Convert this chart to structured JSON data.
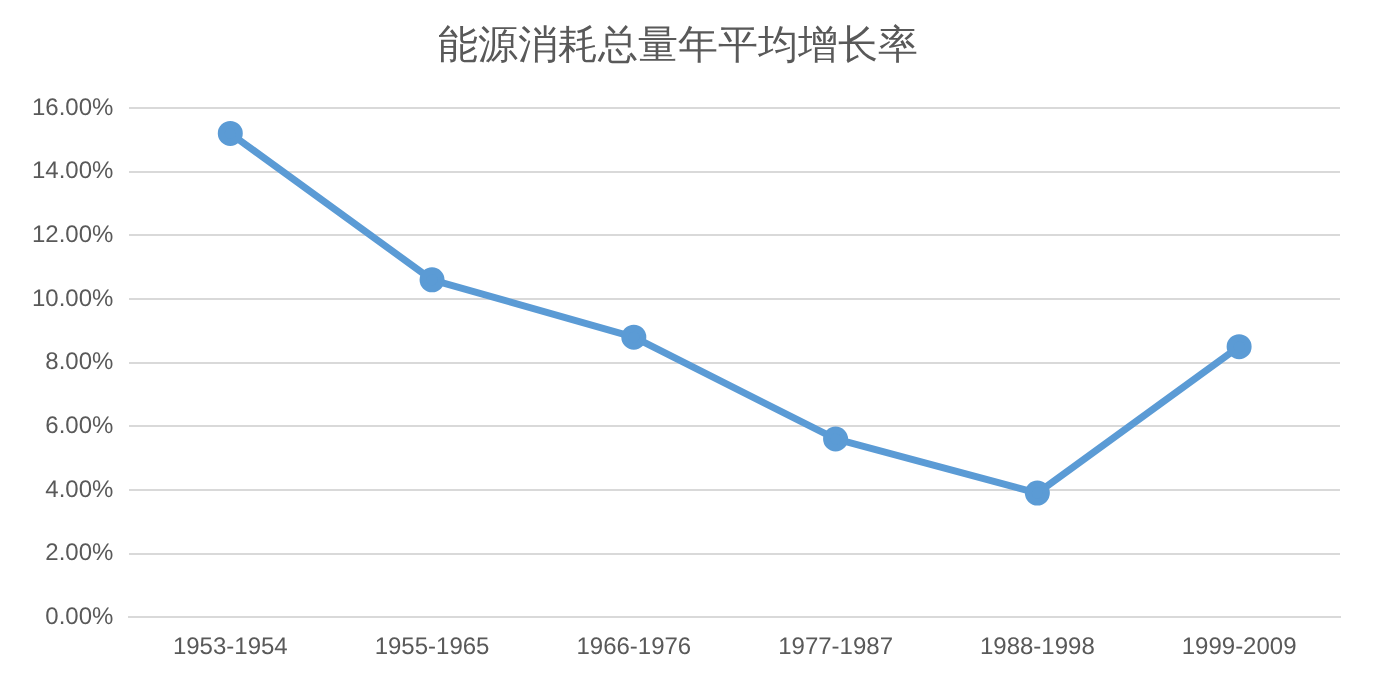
{
  "chart_data": {
    "type": "line",
    "title": "能源消耗总量年平均增长率",
    "categories": [
      "1953-1954",
      "1955-1965",
      "1966-1976",
      "1977-1987",
      "1988-1998",
      "1999-2009"
    ],
    "series": [
      {
        "color": "#5b9bd5",
        "values": [
          15.2,
          10.6,
          8.8,
          5.6,
          3.9,
          8.5
        ]
      }
    ],
    "ylim": [
      0,
      16
    ],
    "yticks": [
      {
        "value": 0,
        "label": "0.00%"
      },
      {
        "value": 2,
        "label": "2.00%"
      },
      {
        "value": 4,
        "label": "4.00%"
      },
      {
        "value": 6,
        "label": "6.00%"
      },
      {
        "value": 8,
        "label": "8.00%"
      },
      {
        "value": 10,
        "label": "10.00%"
      },
      {
        "value": 12,
        "label": "12.00%"
      },
      {
        "value": 14,
        "label": "14.00%"
      },
      {
        "value": 16,
        "label": "16.00%"
      }
    ],
    "grid": "y",
    "legend": false,
    "marker": "circle",
    "line_style": "solid"
  }
}
